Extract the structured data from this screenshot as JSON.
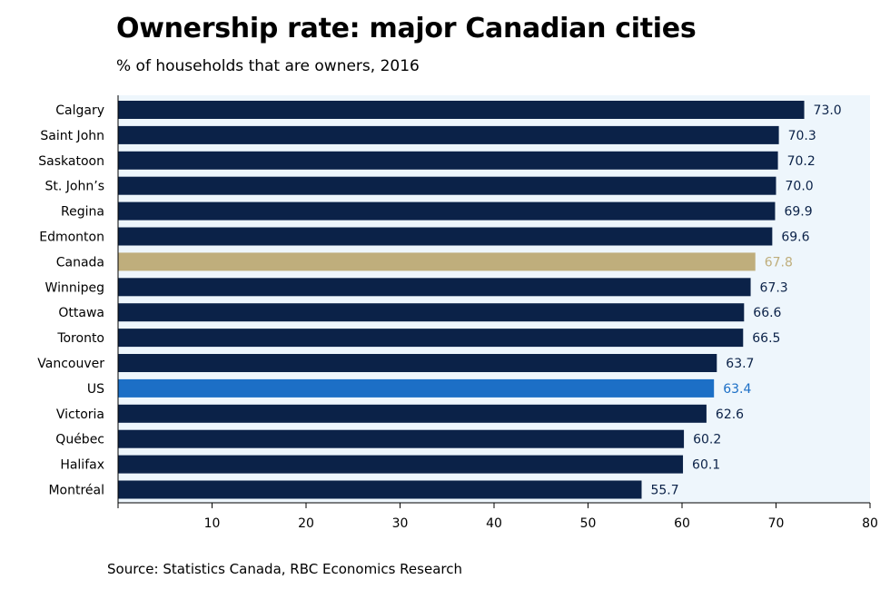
{
  "chart_data": {
    "type": "bar",
    "orientation": "horizontal",
    "title": "Ownership rate: major Canadian cities",
    "subtitle": "% of households that are owners, 2016",
    "source": "Source: Statistics Canada, RBC Economics Research",
    "categories": [
      "Calgary",
      "Saint John",
      "Saskatoon",
      "St. John’s",
      "Regina",
      "Edmonton",
      "Canada",
      "Winnipeg",
      "Ottawa",
      "Toronto",
      "Vancouver",
      "US",
      "Victoria",
      "Québec",
      "Halifax",
      "Montréal"
    ],
    "values": [
      73.0,
      70.3,
      70.2,
      70.0,
      69.9,
      69.6,
      67.8,
      67.3,
      66.6,
      66.5,
      63.7,
      63.4,
      62.6,
      60.2,
      60.1,
      55.7
    ],
    "value_labels": [
      "73.0",
      "70.3",
      "70.2",
      "70.0",
      "69.9",
      "69.6",
      "67.8",
      "67.3",
      "66.6",
      "66.5",
      "63.7",
      "63.4",
      "62.6",
      "60.2",
      "60.1",
      "55.7"
    ],
    "xlim": [
      0,
      80
    ],
    "xticks": [
      10,
      20,
      30,
      40,
      50,
      60,
      70,
      80
    ],
    "grid": false,
    "colors": {
      "default_bar": "#0b2248",
      "highlight_canada": "#bfae7c",
      "highlight_us": "#1c6fc6",
      "plot_background": "#eef6fc",
      "value_default": "#0b2248"
    },
    "highlights": {
      "Canada": "#bfae7c",
      "US": "#1c6fc6"
    }
  }
}
